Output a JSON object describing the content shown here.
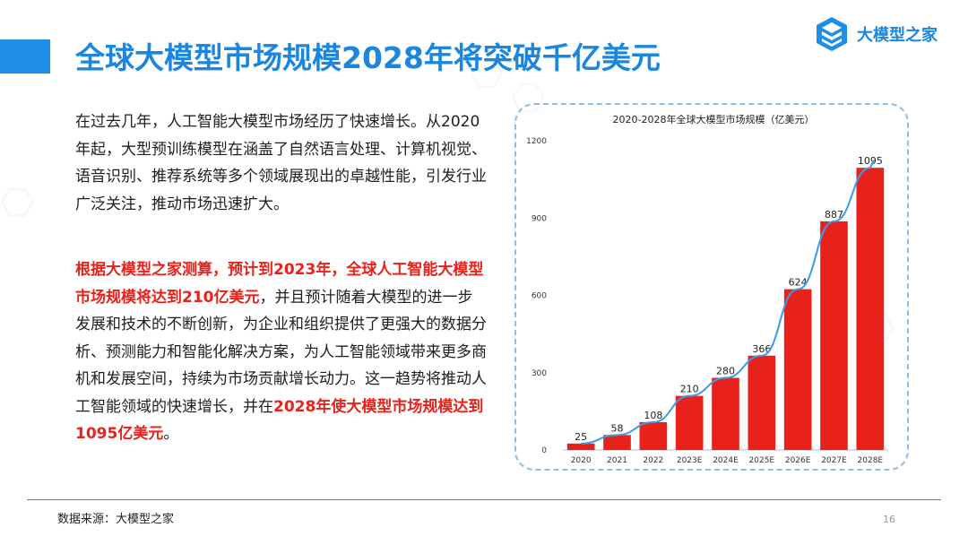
{
  "header": {
    "title": "全球大模型市场规模2028年将突破千亿美元",
    "logo_text": "大模型之家",
    "logo_icon": "cube-stack-icon"
  },
  "body": {
    "paragraph1": "在过去几年，人工智能大模型市场经历了快速增长。从2020年起，大型预训练模型在涵盖了自然语言处理、计算机视觉、语音识别、推荐系统等多个领域展现出的卓越性能，引发行业广泛关注，推动市场迅速扩大。",
    "p2_hl1": "根据大模型之家测算，预计到2023年，全球人工智能大模型市场规模将达到210亿美元",
    "p2_mid": "，并且预计随着大模型的进一步发展和技术的不断创新，为企业和组织提供了更强大的数据分析、预测能力和智能化解决方案，为人工智能领域带来更多商机和发展空间，持续为市场贡献增长动力。这一趋势将推动人工智能领域的快速增长，并在",
    "p2_hl2": "2028年使大模型市场规模达到1095亿美元",
    "p2_end": "。"
  },
  "footer": {
    "source": "数据来源：大模型之家",
    "page": "16"
  },
  "colors": {
    "accent": "#1a86e0",
    "bar": "#e8221a",
    "trend": "#3a9be8",
    "highlight": "#e8221a"
  },
  "chart_data": {
    "type": "bar",
    "title": "2020-2028年全球大模型市场规模（亿美元）",
    "categories": [
      "2020",
      "2021",
      "2022",
      "2023E",
      "2024E",
      "2025E",
      "2026E",
      "2027E",
      "2028E"
    ],
    "values": [
      25,
      58,
      108,
      210,
      280,
      366,
      624,
      887,
      1095
    ],
    "ylim": [
      0,
      1200
    ],
    "yticks": [
      0,
      300,
      600,
      900,
      1200
    ],
    "trendline": true,
    "grid": false,
    "legend": "none"
  }
}
